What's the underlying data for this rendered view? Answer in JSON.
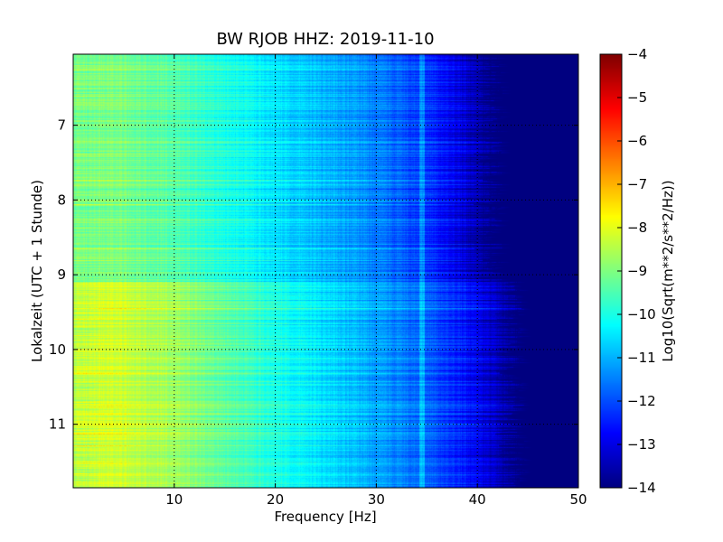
{
  "chart_data": {
    "type": "heatmap",
    "title": "BW RJOB HHZ: 2019-11-10",
    "xlabel": "Frequency [Hz]",
    "ylabel": "Lokalzeit (UTC + 1 Stunde)",
    "xlim": [
      0,
      50
    ],
    "ylim": [
      6.05,
      11.85
    ],
    "y_inverted": true,
    "x_ticks": [
      10,
      20,
      30,
      40,
      50
    ],
    "y_ticks": [
      7,
      8,
      9,
      10,
      11
    ],
    "grid": true,
    "colormap": "jet",
    "colorbar": {
      "label": "Log10(Sqrt(m**2/s**2/Hz))",
      "range": [
        -14,
        -4
      ],
      "ticks": [
        -4,
        -5,
        -6,
        -7,
        -8,
        -9,
        -10,
        -11,
        -12,
        -13,
        -14
      ]
    },
    "value_range": [
      -14,
      -4
    ],
    "level_profile": {
      "frequency_hz": [
        0,
        2,
        5,
        10,
        15,
        20,
        25,
        30,
        35,
        38,
        40,
        42,
        44,
        50
      ],
      "before_9h": [
        -9.2,
        -9.0,
        -9.1,
        -9.4,
        -10.0,
        -10.5,
        -11.0,
        -11.5,
        -12.3,
        -12.9,
        -13.6,
        -14,
        -14,
        -14
      ],
      "after_9h": [
        -8.6,
        -8.2,
        -8.3,
        -8.7,
        -9.4,
        -10.0,
        -10.6,
        -11.2,
        -11.9,
        -12.4,
        -12.9,
        -13.5,
        -14,
        -14
      ]
    },
    "features": [
      {
        "type": "spectral_line",
        "frequency_hz": 34.5,
        "time_range": [
          6.05,
          11.85
        ]
      }
    ]
  }
}
